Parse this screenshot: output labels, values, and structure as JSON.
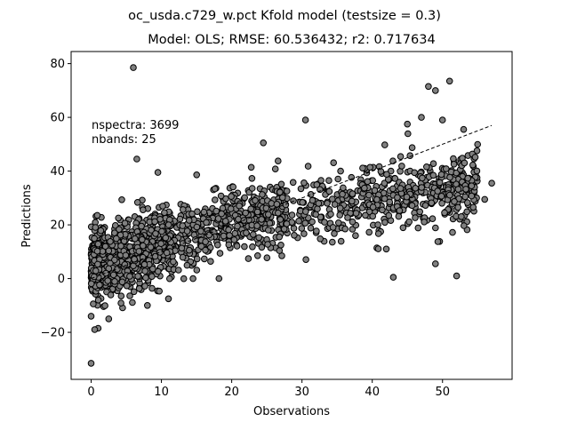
{
  "chart_data": {
    "type": "scatter",
    "suptitle": "oc_usda.c729_w.pct Kfold model (testsize = 0.3)",
    "title": "Model: OLS; RMSE: 60.536432; r2: 0.717634",
    "xlabel": "Observations",
    "ylabel": "Predictions",
    "xlim": [
      -2.85,
      59.9
    ],
    "ylim": [
      -37.5,
      84.5
    ],
    "xticks": [
      0,
      10,
      20,
      30,
      40,
      50
    ],
    "yticks": [
      -20,
      0,
      20,
      40,
      60,
      80
    ],
    "grid": false,
    "annotations": [
      "nspectra: 3699",
      "nbands: 25"
    ],
    "reference_line": {
      "style": "dashed",
      "from": [
        0,
        0
      ],
      "to": [
        57,
        57
      ]
    },
    "marker": {
      "shape": "circle",
      "fill": "#808080",
      "edge": "#000000"
    },
    "points_shown_as_cloud": true,
    "outliers": [
      {
        "x": 0.0,
        "y": -31.5
      },
      {
        "x": 6.0,
        "y": 78.5
      },
      {
        "x": 6.5,
        "y": 44.5
      },
      {
        "x": 30.5,
        "y": 59.0
      },
      {
        "x": 24.5,
        "y": 50.5
      },
      {
        "x": 48.0,
        "y": 71.5
      },
      {
        "x": 51.0,
        "y": 73.5
      },
      {
        "x": 49.0,
        "y": 70.0
      },
      {
        "x": 43.0,
        "y": 0.5
      },
      {
        "x": 52.0,
        "y": 1.0
      },
      {
        "x": 49.0,
        "y": 5.5
      },
      {
        "x": 57.0,
        "y": 35.5
      },
      {
        "x": 56.0,
        "y": 29.5
      },
      {
        "x": 42.0,
        "y": 11.0
      },
      {
        "x": 14.5,
        "y": 0.0
      },
      {
        "x": 11.0,
        "y": -7.5
      },
      {
        "x": 8.0,
        "y": -10.0
      },
      {
        "x": 1.0,
        "y": -18.5
      },
      {
        "x": 0.5,
        "y": -19.0
      },
      {
        "x": 2.5,
        "y": -15.0
      },
      {
        "x": 0.0,
        "y": -14.0
      },
      {
        "x": 9.5,
        "y": 39.5
      },
      {
        "x": 35.5,
        "y": 40.0
      },
      {
        "x": 45.0,
        "y": 57.5
      },
      {
        "x": 47.0,
        "y": 60.0
      },
      {
        "x": 50.0,
        "y": 59.0
      },
      {
        "x": 53.0,
        "y": 55.5
      }
    ]
  }
}
